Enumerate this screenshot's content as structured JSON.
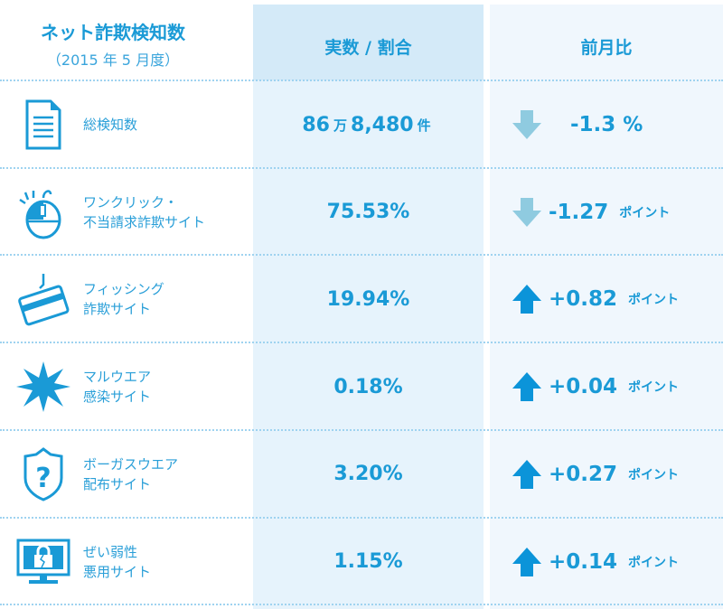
{
  "header": {
    "title": "ネット詐欺検知数",
    "subtitle": "（2015 年 5 月度）",
    "col_value": "実数 / 割合",
    "col_change": "前月比"
  },
  "colors": {
    "text": "#1a9ad6",
    "down_arrow": "#8fcbe0",
    "up_arrow": "#0b94d9"
  },
  "rows": [
    {
      "icon": "document-icon",
      "label1": "総検知数",
      "label2": "",
      "value_parts": [
        "86",
        "万",
        "8,480",
        "件"
      ],
      "direction": "down",
      "change": "-1.3",
      "unit": "%"
    },
    {
      "icon": "mouse-icon",
      "label1": "ワンクリック・",
      "label2": "不当請求詐欺サイト",
      "value": "75.53%",
      "direction": "down",
      "change": "-1.27",
      "unit": "ポイント"
    },
    {
      "icon": "phishing-card-icon",
      "label1": "フィッシング",
      "label2": "詐欺サイト",
      "value": "19.94%",
      "direction": "up",
      "change": "+0.82",
      "unit": "ポイント"
    },
    {
      "icon": "malware-burst-icon",
      "label1": "マルウエア",
      "label2": "感染サイト",
      "value": "0.18%",
      "direction": "up",
      "change": "+0.04",
      "unit": "ポイント"
    },
    {
      "icon": "shield-question-icon",
      "label1": "ボーガスウエア",
      "label2": "配布サイト",
      "value": "3.20%",
      "direction": "up",
      "change": "+0.27",
      "unit": "ポイント"
    },
    {
      "icon": "monitor-broken-lock-icon",
      "label1": "ぜい弱性",
      "label2": "悪用サイト",
      "value": "1.15%",
      "direction": "up",
      "change": "+0.14",
      "unit": "ポイント"
    }
  ]
}
